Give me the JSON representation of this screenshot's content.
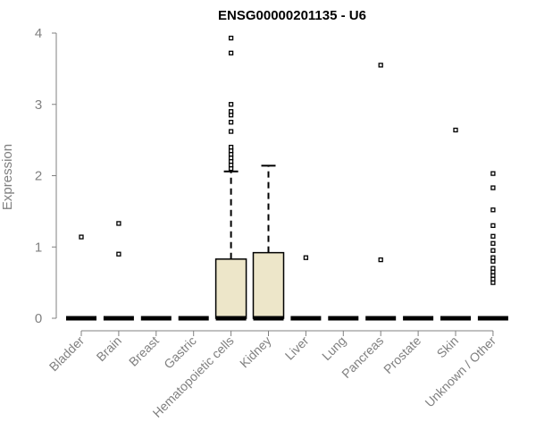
{
  "chart_data": {
    "type": "boxplot",
    "title": "ENSG00000201135 - U6",
    "xlabel": "",
    "ylabel": "Expression",
    "ylim": [
      0,
      4
    ],
    "yticks": [
      "0",
      "1",
      "2",
      "3",
      "4"
    ],
    "categories": [
      "Bladder",
      "Brain",
      "Breast",
      "Gastric",
      "Hematopoietic cells",
      "Kidney",
      "Liver",
      "Lung",
      "Pancreas",
      "Prostate",
      "Skin",
      "Unknown / Other"
    ],
    "boxes": [
      {
        "q1": 0,
        "median": 0,
        "q3": 0,
        "whisker_low": 0,
        "whisker_high": 0,
        "outliers": [
          1.14
        ]
      },
      {
        "q1": 0,
        "median": 0,
        "q3": 0,
        "whisker_low": 0,
        "whisker_high": 0,
        "outliers": [
          0.9,
          1.33
        ]
      },
      {
        "q1": 0,
        "median": 0,
        "q3": 0,
        "whisker_low": 0,
        "whisker_high": 0,
        "outliers": []
      },
      {
        "q1": 0,
        "median": 0,
        "q3": 0,
        "whisker_low": 0,
        "whisker_high": 0,
        "outliers": []
      },
      {
        "q1": 0,
        "median": 0,
        "q3": 0.83,
        "whisker_low": 0,
        "whisker_high": 2.06,
        "outliers": [
          2.1,
          2.15,
          2.2,
          2.25,
          2.3,
          2.35,
          2.4,
          2.62,
          2.75,
          2.85,
          2.9,
          3.0,
          3.72,
          3.93
        ]
      },
      {
        "q1": 0,
        "median": 0,
        "q3": 0.92,
        "whisker_low": 0,
        "whisker_high": 2.14,
        "outliers": []
      },
      {
        "q1": 0,
        "median": 0,
        "q3": 0,
        "whisker_low": 0,
        "whisker_high": 0,
        "outliers": [
          0.85
        ]
      },
      {
        "q1": 0,
        "median": 0,
        "q3": 0,
        "whisker_low": 0,
        "whisker_high": 0,
        "outliers": []
      },
      {
        "q1": 0,
        "median": 0,
        "q3": 0,
        "whisker_low": 0,
        "whisker_high": 0,
        "outliers": [
          0.82,
          3.55
        ]
      },
      {
        "q1": 0,
        "median": 0,
        "q3": 0,
        "whisker_low": 0,
        "whisker_high": 0,
        "outliers": []
      },
      {
        "q1": 0,
        "median": 0,
        "q3": 0,
        "whisker_low": 0,
        "whisker_high": 0,
        "outliers": [
          2.64
        ]
      },
      {
        "q1": 0,
        "median": 0,
        "q3": 0,
        "whisker_low": 0,
        "whisker_high": 0,
        "outliers": [
          0.5,
          0.55,
          0.6,
          0.65,
          0.7,
          0.8,
          0.85,
          0.95,
          1.05,
          1.15,
          1.3,
          1.52,
          1.83,
          2.03
        ]
      }
    ],
    "colors": {
      "box_fill": "#ede6c9",
      "axis": "#808080",
      "stroke": "#000000"
    },
    "grid": false,
    "legend": "none"
  }
}
